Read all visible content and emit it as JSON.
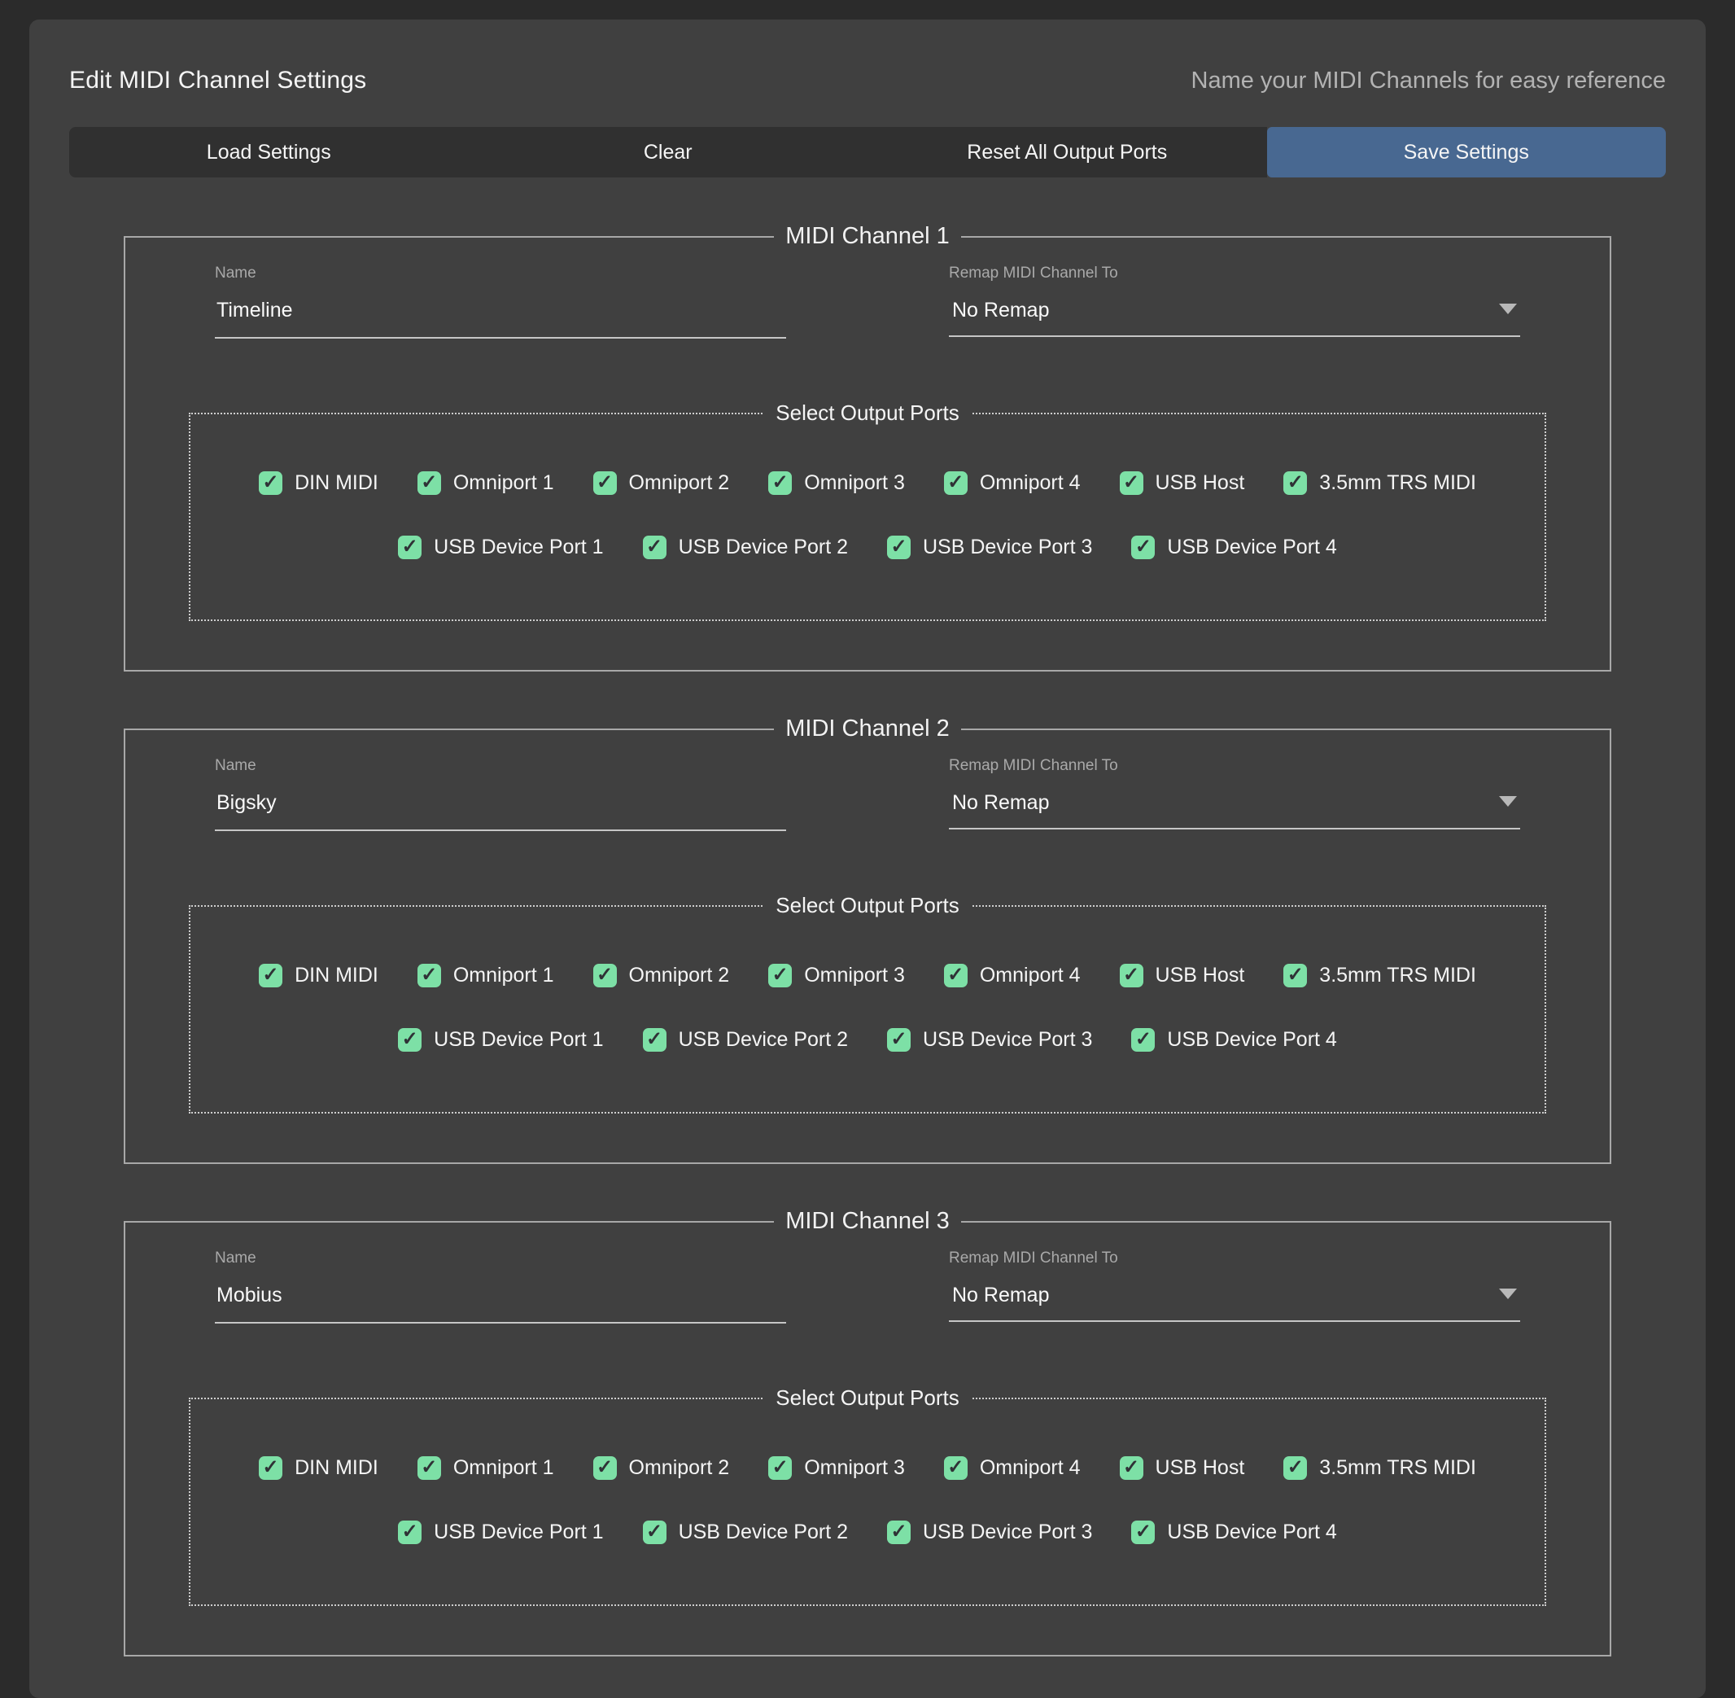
{
  "header": {
    "title": "Edit MIDI Channel Settings",
    "subtitle": "Name your MIDI Channels for easy reference"
  },
  "toolbar": {
    "load_label": "Load Settings",
    "clear_label": "Clear",
    "reset_label": "Reset All Output Ports",
    "save_label": "Save Settings"
  },
  "ports": {
    "legend": "Select Output Ports",
    "check_glyph": "✓",
    "all_checked": true,
    "row1": [
      "DIN MIDI",
      "Omniport 1",
      "Omniport 2",
      "Omniport 3",
      "Omniport 4",
      "USB Host",
      "3.5mm TRS MIDI"
    ],
    "row2": [
      "USB Device Port 1",
      "USB Device Port 2",
      "USB Device Port 3",
      "USB Device Port 4"
    ]
  },
  "channels": [
    {
      "legend": "MIDI Channel 1",
      "name_label": "Name",
      "name_value": "Timeline",
      "remap_label": "Remap MIDI Channel To",
      "remap_value": "No Remap"
    },
    {
      "legend": "MIDI Channel 2",
      "name_label": "Name",
      "name_value": "Bigsky",
      "remap_label": "Remap MIDI Channel To",
      "remap_value": "No Remap"
    },
    {
      "legend": "MIDI Channel 3",
      "name_label": "Name",
      "name_value": "Mobius",
      "remap_label": "Remap MIDI Channel To",
      "remap_value": "No Remap"
    }
  ],
  "colors": {
    "page_bg": "#2b2b2b",
    "panel_bg": "#404040",
    "button_dark": "#303030",
    "accent_blue": "#486891",
    "checkbox_green": "#7de0a6"
  }
}
